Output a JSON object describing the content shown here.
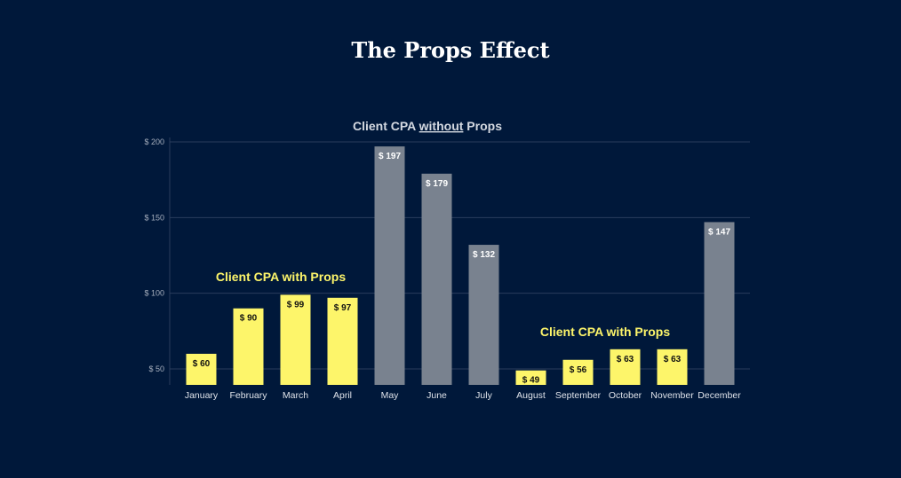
{
  "page": {
    "title": "The Props Effect"
  },
  "chart_data": {
    "type": "bar",
    "subtitle_parts": [
      "Client CPA ",
      "without",
      " Props"
    ],
    "categories": [
      "January",
      "February",
      "March",
      "April",
      "May",
      "June",
      "July",
      "August",
      "September",
      "October",
      "November",
      "December"
    ],
    "values": [
      60,
      90,
      99,
      97,
      197,
      179,
      132,
      49,
      56,
      63,
      63,
      147
    ],
    "data_labels": [
      "$ 60",
      "$ 90",
      "$ 99",
      "$ 97",
      "$ 197",
      "$ 179",
      "$ 132",
      "$ 49",
      "$ 56",
      "$ 63",
      "$ 63",
      "$ 147"
    ],
    "bar_groups": [
      "with",
      "with",
      "with",
      "with",
      "without",
      "without",
      "without",
      "with",
      "with",
      "with",
      "with",
      "without"
    ],
    "y_ticks": [
      50,
      100,
      150,
      200
    ],
    "y_tick_labels": [
      "$ 50",
      "$ 100",
      "$ 150",
      "$ 200"
    ],
    "ylim": [
      40,
      200
    ],
    "grid": true,
    "annotations": [
      {
        "text": "Client CPA with Props",
        "near": "February-April"
      },
      {
        "text": "Client CPA with Props",
        "near": "August-November"
      }
    ],
    "colors": {
      "with": "#fdf56a",
      "without": "#79828f",
      "background": "#00183a",
      "grid": "#2a3d5c"
    }
  }
}
